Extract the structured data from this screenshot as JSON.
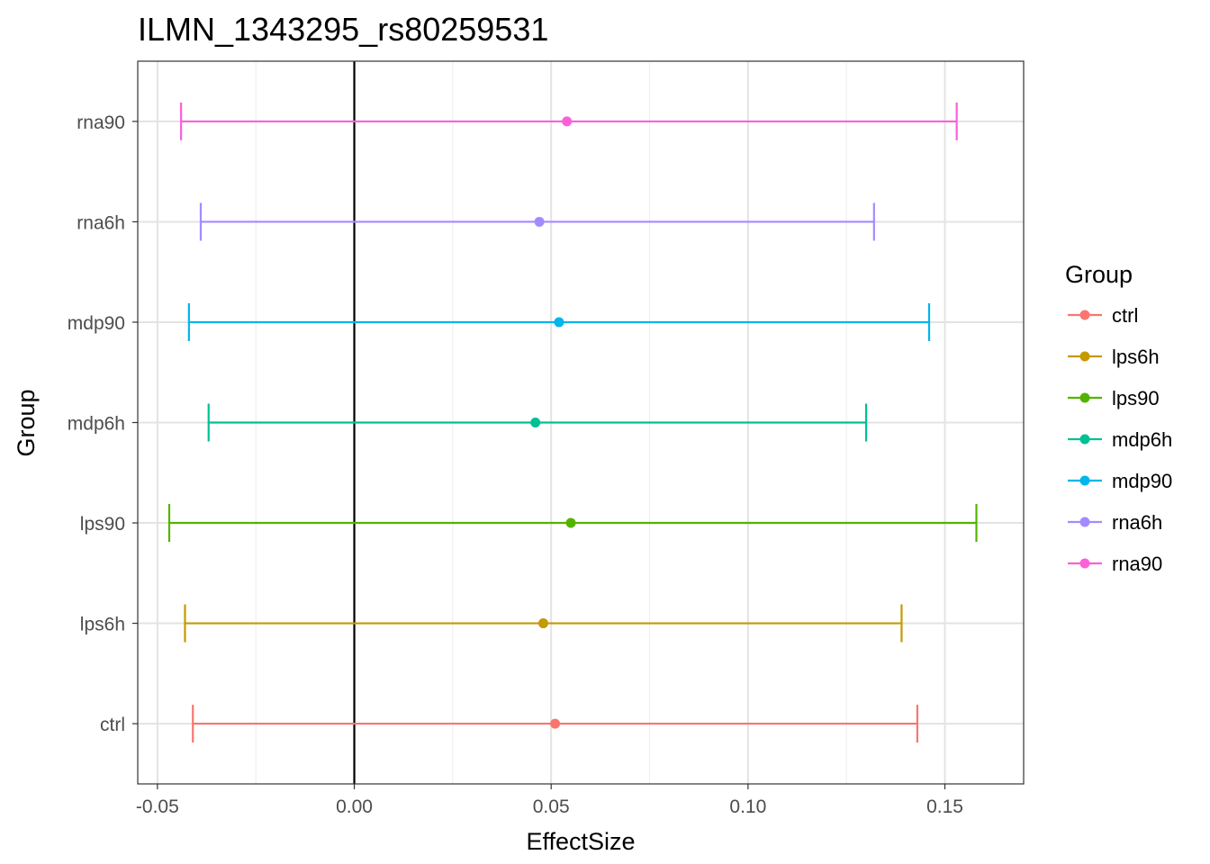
{
  "chart_data": {
    "type": "errorbar",
    "title": "ILMN_1343295_rs80259531",
    "xlabel": "EffectSize",
    "ylabel": "Group",
    "xlim": [
      -0.055,
      0.17
    ],
    "x_ticks": [
      -0.05,
      0.0,
      0.05,
      0.1,
      0.15
    ],
    "x_tick_labels": [
      "-0.05",
      "0.00",
      "0.05",
      "0.10",
      "0.15"
    ],
    "categories": [
      "ctrl",
      "lps6h",
      "lps90",
      "mdp6h",
      "mdp90",
      "rna6h",
      "rna90"
    ],
    "reference_line_x": 0,
    "grid": true,
    "legend": {
      "title": "Group",
      "position": "right",
      "entries": [
        "ctrl",
        "lps6h",
        "lps90",
        "mdp6h",
        "mdp90",
        "rna6h",
        "rna90"
      ]
    },
    "series": [
      {
        "name": "ctrl",
        "estimate": 0.051,
        "lower": -0.041,
        "upper": 0.143,
        "color": "#F8766D"
      },
      {
        "name": "lps6h",
        "estimate": 0.048,
        "lower": -0.043,
        "upper": 0.139,
        "color": "#C49A00"
      },
      {
        "name": "lps90",
        "estimate": 0.055,
        "lower": -0.047,
        "upper": 0.158,
        "color": "#53B400"
      },
      {
        "name": "mdp6h",
        "estimate": 0.046,
        "lower": -0.037,
        "upper": 0.13,
        "color": "#00C094"
      },
      {
        "name": "mdp90",
        "estimate": 0.052,
        "lower": -0.042,
        "upper": 0.146,
        "color": "#00B6EB"
      },
      {
        "name": "rna6h",
        "estimate": 0.047,
        "lower": -0.039,
        "upper": 0.132,
        "color": "#A58AFF"
      },
      {
        "name": "rna90",
        "estimate": 0.054,
        "lower": -0.044,
        "upper": 0.153,
        "color": "#FB61D7"
      }
    ]
  }
}
